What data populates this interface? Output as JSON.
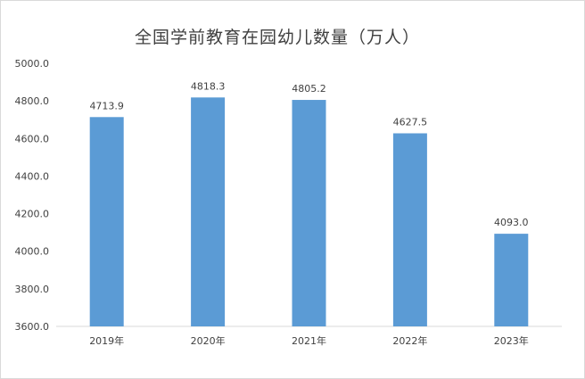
{
  "chart_data": {
    "type": "bar",
    "title": "全国学前教育在园幼儿数量（万人）",
    "categories": [
      "2019年",
      "2020年",
      "2021年",
      "2022年",
      "2023年"
    ],
    "values": [
      4713.9,
      4818.3,
      4805.2,
      4627.5,
      4093.0
    ],
    "data_labels": [
      "4713.9",
      "4818.3",
      "4805.2",
      "4627.5",
      "4093.0"
    ],
    "y_ticks": [
      "3600.0",
      "3800.0",
      "4000.0",
      "4200.0",
      "4400.0",
      "4600.0",
      "4800.0",
      "5000.0"
    ],
    "ylim": [
      3600,
      5000
    ],
    "xlabel": "",
    "ylabel": "",
    "grid": false,
    "legend": "none",
    "bar_color": "#5b9bd5"
  }
}
